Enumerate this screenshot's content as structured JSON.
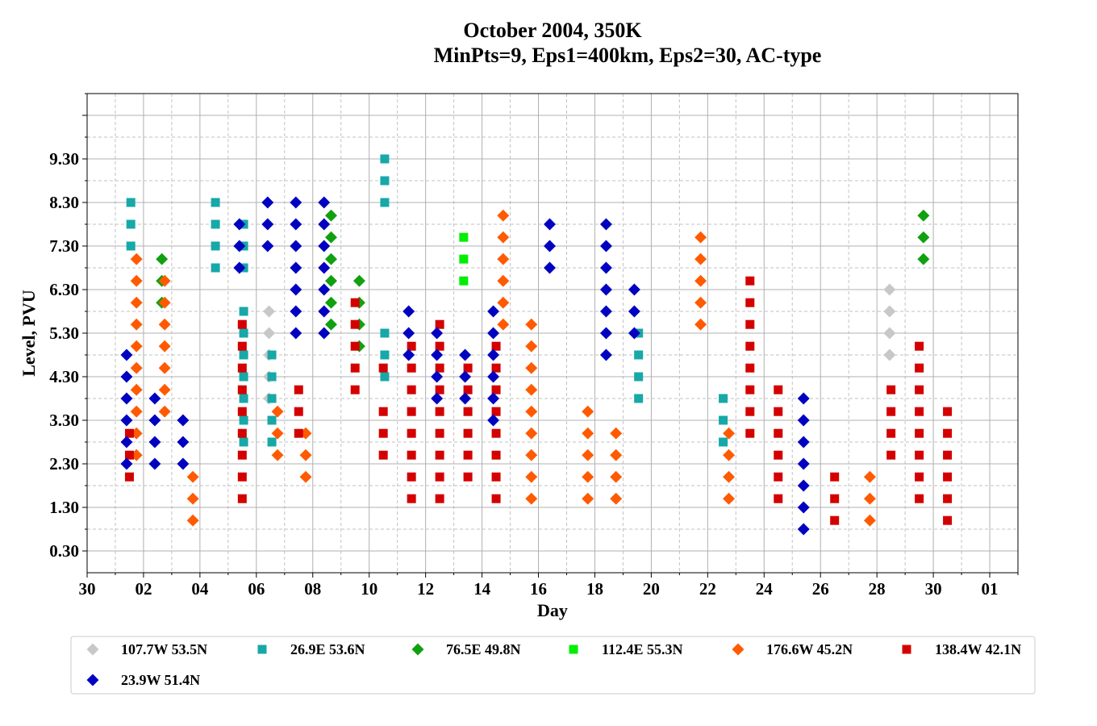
{
  "chart_data": {
    "type": "scatter",
    "title": "October 2004, 350K",
    "subtitle": "MinPts=9, Eps1=400km, Eps2=30, AC-type",
    "xlabel": "Day",
    "ylabel": "Level, PVU",
    "xlim": [
      0,
      33
    ],
    "ylim": [
      -0.2,
      10.8
    ],
    "x_ticks": [
      "30",
      "02",
      "04",
      "06",
      "08",
      "10",
      "12",
      "14",
      "16",
      "18",
      "20",
      "22",
      "24",
      "26",
      "28",
      "30",
      "01"
    ],
    "y_ticks": [
      "0.30",
      "1.30",
      "2.30",
      "3.30",
      "4.30",
      "5.30",
      "6.30",
      "7.30",
      "8.30",
      "9.30"
    ],
    "grid": true,
    "legend_position": "bottom",
    "series": [
      {
        "name": "107.7W 53.5N",
        "marker": "diamond",
        "color": "#c8c8c8",
        "points": [
          [
            6.45,
            5.8
          ],
          [
            6.45,
            5.3
          ],
          [
            6.45,
            4.8
          ],
          [
            6.45,
            4.3
          ],
          [
            6.45,
            3.8
          ],
          [
            28.45,
            6.3
          ],
          [
            28.45,
            5.8
          ],
          [
            28.45,
            5.3
          ],
          [
            28.45,
            4.8
          ]
        ]
      },
      {
        "name": "26.9E 53.6N",
        "marker": "square",
        "color": "#17a8a8",
        "points": [
          [
            1.55,
            8.3
          ],
          [
            1.55,
            7.8
          ],
          [
            1.55,
            7.3
          ],
          [
            4.55,
            8.3
          ],
          [
            4.55,
            7.8
          ],
          [
            4.55,
            7.3
          ],
          [
            4.55,
            6.8
          ],
          [
            5.55,
            7.8
          ],
          [
            5.55,
            7.3
          ],
          [
            5.55,
            6.8
          ],
          [
            5.55,
            5.8
          ],
          [
            5.55,
            5.3
          ],
          [
            5.55,
            4.8
          ],
          [
            5.55,
            4.3
          ],
          [
            5.55,
            3.8
          ],
          [
            5.55,
            3.3
          ],
          [
            5.55,
            2.8
          ],
          [
            6.55,
            4.8
          ],
          [
            6.55,
            4.3
          ],
          [
            6.55,
            3.8
          ],
          [
            6.55,
            3.3
          ],
          [
            6.55,
            2.8
          ],
          [
            10.55,
            9.3
          ],
          [
            10.55,
            8.8
          ],
          [
            10.55,
            8.3
          ],
          [
            10.55,
            5.3
          ],
          [
            10.55,
            4.8
          ],
          [
            10.55,
            4.3
          ],
          [
            19.55,
            5.3
          ],
          [
            19.55,
            4.8
          ],
          [
            19.55,
            4.3
          ],
          [
            19.55,
            3.8
          ],
          [
            22.55,
            3.8
          ],
          [
            22.55,
            3.3
          ],
          [
            22.55,
            2.8
          ]
        ]
      },
      {
        "name": "76.5E 49.8N",
        "marker": "diamond",
        "color": "#10a010",
        "points": [
          [
            2.65,
            7.0
          ],
          [
            2.65,
            6.5
          ],
          [
            2.65,
            6.0
          ],
          [
            8.65,
            8.0
          ],
          [
            8.65,
            7.5
          ],
          [
            8.65,
            7.0
          ],
          [
            8.65,
            6.5
          ],
          [
            8.65,
            6.0
          ],
          [
            8.65,
            5.5
          ],
          [
            9.65,
            6.5
          ],
          [
            9.65,
            6.0
          ],
          [
            9.65,
            5.5
          ],
          [
            9.65,
            5.0
          ],
          [
            29.65,
            8.0
          ],
          [
            29.65,
            7.5
          ],
          [
            29.65,
            7.0
          ]
        ]
      },
      {
        "name": "112.4E 55.3N",
        "marker": "square",
        "color": "#00ee00",
        "points": [
          [
            13.35,
            7.5
          ],
          [
            13.35,
            7.0
          ],
          [
            13.35,
            6.5
          ]
        ]
      },
      {
        "name": "176.6W 45.2N",
        "marker": "diamond",
        "color": "#ff5a00",
        "points": [
          [
            1.75,
            7.0
          ],
          [
            1.75,
            6.5
          ],
          [
            1.75,
            6.0
          ],
          [
            1.75,
            5.5
          ],
          [
            1.75,
            5.0
          ],
          [
            1.75,
            4.5
          ],
          [
            1.75,
            4.0
          ],
          [
            1.75,
            3.5
          ],
          [
            1.75,
            3.0
          ],
          [
            1.75,
            2.5
          ],
          [
            2.75,
            6.5
          ],
          [
            2.75,
            6.0
          ],
          [
            2.75,
            5.5
          ],
          [
            2.75,
            5.0
          ],
          [
            2.75,
            4.5
          ],
          [
            2.75,
            4.0
          ],
          [
            2.75,
            3.5
          ],
          [
            3.75,
            2.0
          ],
          [
            3.75,
            1.5
          ],
          [
            3.75,
            1.0
          ],
          [
            6.75,
            3.5
          ],
          [
            6.75,
            3.0
          ],
          [
            6.75,
            2.5
          ],
          [
            7.75,
            3.0
          ],
          [
            7.75,
            2.5
          ],
          [
            7.75,
            2.0
          ],
          [
            14.75,
            8.0
          ],
          [
            14.75,
            7.5
          ],
          [
            14.75,
            7.0
          ],
          [
            14.75,
            6.5
          ],
          [
            14.75,
            6.0
          ],
          [
            14.75,
            5.5
          ],
          [
            15.75,
            5.5
          ],
          [
            15.75,
            5.0
          ],
          [
            15.75,
            4.5
          ],
          [
            15.75,
            4.0
          ],
          [
            15.75,
            3.5
          ],
          [
            15.75,
            3.0
          ],
          [
            15.75,
            2.5
          ],
          [
            15.75,
            2.0
          ],
          [
            15.75,
            1.5
          ],
          [
            17.75,
            3.5
          ],
          [
            17.75,
            3.0
          ],
          [
            17.75,
            2.5
          ],
          [
            17.75,
            2.0
          ],
          [
            17.75,
            1.5
          ],
          [
            18.75,
            3.0
          ],
          [
            18.75,
            2.5
          ],
          [
            18.75,
            2.0
          ],
          [
            18.75,
            1.5
          ],
          [
            21.75,
            7.5
          ],
          [
            21.75,
            7.0
          ],
          [
            21.75,
            6.5
          ],
          [
            21.75,
            6.0
          ],
          [
            21.75,
            5.5
          ],
          [
            22.75,
            3.0
          ],
          [
            22.75,
            2.5
          ],
          [
            22.75,
            2.0
          ],
          [
            22.75,
            1.5
          ],
          [
            27.75,
            2.0
          ],
          [
            27.75,
            1.5
          ],
          [
            27.75,
            1.0
          ]
        ]
      },
      {
        "name": "138.4W 42.1N",
        "marker": "square",
        "color": "#d40000",
        "points": [
          [
            1.5,
            3.0
          ],
          [
            1.5,
            2.5
          ],
          [
            1.5,
            2.0
          ],
          [
            5.5,
            5.5
          ],
          [
            5.5,
            5.0
          ],
          [
            5.5,
            4.5
          ],
          [
            5.5,
            4.0
          ],
          [
            5.5,
            3.5
          ],
          [
            5.5,
            3.0
          ],
          [
            5.5,
            2.5
          ],
          [
            5.5,
            2.0
          ],
          [
            5.5,
            1.5
          ],
          [
            7.5,
            4.0
          ],
          [
            7.5,
            3.5
          ],
          [
            7.5,
            3.0
          ],
          [
            9.5,
            6.0
          ],
          [
            9.5,
            5.5
          ],
          [
            9.5,
            5.0
          ],
          [
            9.5,
            4.5
          ],
          [
            9.5,
            4.0
          ],
          [
            10.5,
            4.5
          ],
          [
            10.5,
            3.5
          ],
          [
            10.5,
            3.0
          ],
          [
            10.5,
            2.5
          ],
          [
            11.5,
            5.0
          ],
          [
            11.5,
            4.5
          ],
          [
            11.5,
            4.0
          ],
          [
            11.5,
            3.5
          ],
          [
            11.5,
            3.0
          ],
          [
            11.5,
            2.5
          ],
          [
            11.5,
            2.0
          ],
          [
            11.5,
            1.5
          ],
          [
            12.5,
            5.5
          ],
          [
            12.5,
            5.0
          ],
          [
            12.5,
            4.5
          ],
          [
            12.5,
            4.0
          ],
          [
            12.5,
            3.5
          ],
          [
            12.5,
            3.0
          ],
          [
            12.5,
            2.5
          ],
          [
            12.5,
            2.0
          ],
          [
            12.5,
            1.5
          ],
          [
            13.5,
            4.5
          ],
          [
            13.5,
            4.0
          ],
          [
            13.5,
            3.5
          ],
          [
            13.5,
            3.0
          ],
          [
            13.5,
            2.5
          ],
          [
            13.5,
            2.0
          ],
          [
            14.5,
            5.0
          ],
          [
            14.5,
            4.5
          ],
          [
            14.5,
            4.0
          ],
          [
            14.5,
            3.5
          ],
          [
            14.5,
            3.0
          ],
          [
            14.5,
            2.5
          ],
          [
            14.5,
            2.0
          ],
          [
            14.5,
            1.5
          ],
          [
            23.5,
            6.5
          ],
          [
            23.5,
            6.0
          ],
          [
            23.5,
            5.5
          ],
          [
            23.5,
            5.0
          ],
          [
            23.5,
            4.5
          ],
          [
            23.5,
            4.0
          ],
          [
            23.5,
            3.5
          ],
          [
            23.5,
            3.0
          ],
          [
            24.5,
            4.0
          ],
          [
            24.5,
            3.5
          ],
          [
            24.5,
            3.0
          ],
          [
            24.5,
            2.5
          ],
          [
            24.5,
            2.0
          ],
          [
            24.5,
            1.5
          ],
          [
            26.5,
            2.0
          ],
          [
            26.5,
            1.5
          ],
          [
            26.5,
            1.0
          ],
          [
            28.5,
            4.0
          ],
          [
            28.5,
            3.5
          ],
          [
            28.5,
            3.0
          ],
          [
            28.5,
            2.5
          ],
          [
            29.5,
            5.0
          ],
          [
            29.5,
            4.5
          ],
          [
            29.5,
            4.0
          ],
          [
            29.5,
            3.5
          ],
          [
            29.5,
            3.0
          ],
          [
            29.5,
            2.5
          ],
          [
            29.5,
            2.0
          ],
          [
            29.5,
            1.5
          ],
          [
            30.5,
            3.5
          ],
          [
            30.5,
            3.0
          ],
          [
            30.5,
            2.5
          ],
          [
            30.5,
            2.0
          ],
          [
            30.5,
            1.5
          ],
          [
            30.5,
            1.0
          ]
        ]
      },
      {
        "name": "23.9W 51.4N",
        "marker": "diamond",
        "color": "#0000c0",
        "points": [
          [
            1.4,
            4.8
          ],
          [
            1.4,
            4.3
          ],
          [
            1.4,
            3.8
          ],
          [
            1.4,
            3.3
          ],
          [
            1.4,
            2.8
          ],
          [
            1.4,
            2.3
          ],
          [
            2.4,
            3.8
          ],
          [
            2.4,
            3.3
          ],
          [
            2.4,
            2.8
          ],
          [
            2.4,
            2.3
          ],
          [
            3.4,
            3.3
          ],
          [
            3.4,
            2.8
          ],
          [
            3.4,
            2.3
          ],
          [
            5.4,
            7.8
          ],
          [
            5.4,
            7.3
          ],
          [
            5.4,
            6.8
          ],
          [
            6.4,
            8.3
          ],
          [
            6.4,
            7.8
          ],
          [
            6.4,
            7.3
          ],
          [
            7.4,
            8.3
          ],
          [
            7.4,
            7.8
          ],
          [
            7.4,
            7.3
          ],
          [
            7.4,
            6.8
          ],
          [
            7.4,
            6.3
          ],
          [
            7.4,
            5.8
          ],
          [
            7.4,
            5.3
          ],
          [
            8.4,
            8.3
          ],
          [
            8.4,
            7.8
          ],
          [
            8.4,
            7.3
          ],
          [
            8.4,
            6.8
          ],
          [
            8.4,
            6.3
          ],
          [
            8.4,
            5.8
          ],
          [
            8.4,
            5.3
          ],
          [
            11.4,
            5.8
          ],
          [
            11.4,
            5.3
          ],
          [
            11.4,
            4.8
          ],
          [
            12.4,
            5.3
          ],
          [
            12.4,
            4.8
          ],
          [
            12.4,
            4.3
          ],
          [
            12.4,
            3.8
          ],
          [
            13.4,
            4.8
          ],
          [
            13.4,
            4.3
          ],
          [
            13.4,
            3.8
          ],
          [
            14.4,
            5.8
          ],
          [
            14.4,
            5.3
          ],
          [
            14.4,
            4.8
          ],
          [
            14.4,
            4.3
          ],
          [
            14.4,
            3.8
          ],
          [
            14.4,
            3.3
          ],
          [
            16.4,
            7.8
          ],
          [
            16.4,
            7.3
          ],
          [
            16.4,
            6.8
          ],
          [
            18.4,
            7.8
          ],
          [
            18.4,
            7.3
          ],
          [
            18.4,
            6.8
          ],
          [
            18.4,
            6.3
          ],
          [
            18.4,
            5.8
          ],
          [
            18.4,
            5.3
          ],
          [
            18.4,
            4.8
          ],
          [
            19.4,
            6.3
          ],
          [
            19.4,
            5.8
          ],
          [
            19.4,
            5.3
          ],
          [
            25.4,
            3.8
          ],
          [
            25.4,
            3.3
          ],
          [
            25.4,
            2.8
          ],
          [
            25.4,
            2.3
          ],
          [
            25.4,
            1.8
          ],
          [
            25.4,
            1.3
          ],
          [
            25.4,
            0.8
          ]
        ]
      }
    ]
  }
}
